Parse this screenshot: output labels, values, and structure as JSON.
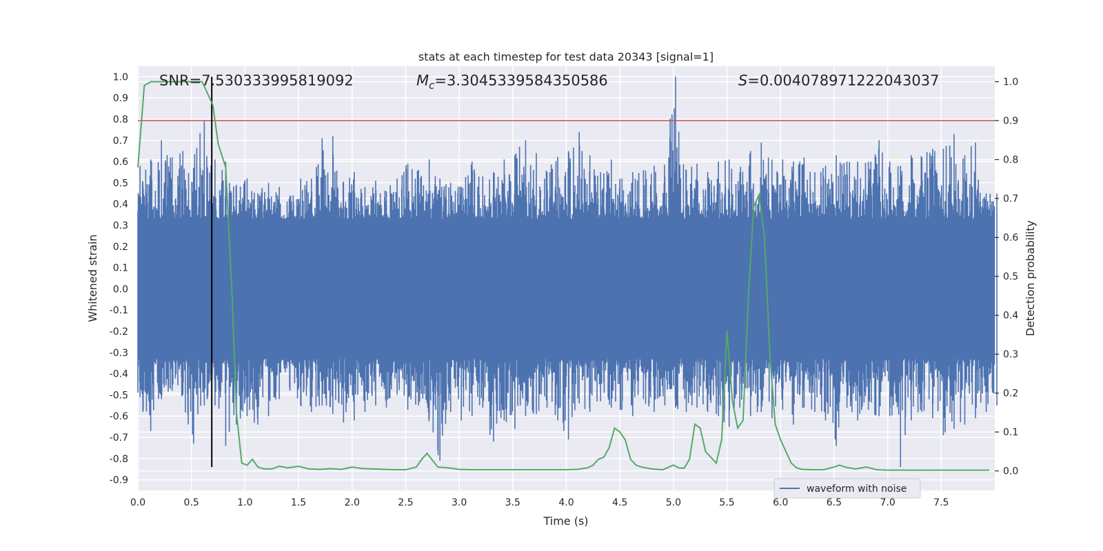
{
  "chart_data": {
    "type": "line",
    "title": "stats at each timestep for test data 20343 [signal=1]",
    "xlabel": "Time (s)",
    "ylabel": "Whitened strain",
    "y2label": "Detection probability",
    "xlim": [
      0.0,
      8.0
    ],
    "ylim": [
      -0.95,
      1.05
    ],
    "y2lim": [
      -0.05,
      1.04
    ],
    "x_ticks": [
      "0.0",
      "0.5",
      "1.0",
      "1.5",
      "2.0",
      "2.5",
      "3.0",
      "3.5",
      "4.0",
      "4.5",
      "5.0",
      "5.5",
      "6.0",
      "6.5",
      "7.0",
      "7.5"
    ],
    "y_ticks": [
      "1.0",
      "0.9",
      "0.8",
      "0.7",
      "0.6",
      "0.5",
      "0.4",
      "0.3",
      "0.2",
      "0.1",
      "0.0",
      "-0.1",
      "-0.2",
      "-0.3",
      "-0.4",
      "-0.5",
      "-0.6",
      "-0.7",
      "-0.8",
      "-0.9"
    ],
    "y2_ticks": [
      "1.0",
      "0.9",
      "0.8",
      "0.7",
      "0.6",
      "0.5",
      "0.4",
      "0.3",
      "0.2",
      "0.1",
      "0.0"
    ],
    "grid": true,
    "legend": {
      "placement": "lower-right",
      "entries": [
        "waveform with noise"
      ]
    },
    "annotations": {
      "snr_label": "SNR=7.530333995819092",
      "mc_label": "=3.3045339584350586",
      "s_label": "=0.004078971222043037",
      "mc_symbol": "M",
      "mc_subscript": "c",
      "s_symbol": "S"
    },
    "colors": {
      "waveform": "#4c72b0",
      "probability": "#55a868",
      "threshold": "#c44e52",
      "marker": "#000000",
      "background": "#eaeaf2"
    },
    "series": [
      {
        "name": "waveform with noise",
        "axis": "left",
        "envelope_x": [
          0.0,
          0.1,
          0.2,
          0.3,
          0.4,
          0.5,
          0.6,
          0.7,
          0.8,
          0.9,
          1.0,
          1.1,
          1.2,
          1.3,
          1.4,
          1.5,
          1.6,
          1.7,
          1.8,
          1.9,
          2.0,
          2.1,
          2.2,
          2.3,
          2.4,
          2.5,
          2.6,
          2.7,
          2.8,
          2.9,
          3.0,
          3.1,
          3.2,
          3.3,
          3.4,
          3.5,
          3.6,
          3.7,
          3.8,
          3.9,
          4.0,
          4.1,
          4.2,
          4.3,
          4.4,
          4.5,
          4.6,
          4.7,
          4.8,
          4.9,
          5.0,
          5.1,
          5.2,
          5.3,
          5.4,
          5.5,
          5.6,
          5.7,
          5.8,
          5.9,
          6.0,
          6.1,
          6.2,
          6.3,
          6.4,
          6.5,
          6.6,
          6.7,
          6.8,
          6.9,
          7.0,
          7.1,
          7.2,
          7.3,
          7.4,
          7.5,
          7.6,
          7.7,
          7.8,
          7.9,
          8.0
        ],
        "envelope_max": [
          0.58,
          0.61,
          0.7,
          0.62,
          0.65,
          0.57,
          0.79,
          0.61,
          0.6,
          0.49,
          0.52,
          0.45,
          0.5,
          0.48,
          0.44,
          0.52,
          0.52,
          0.71,
          0.72,
          0.5,
          0.55,
          0.48,
          0.51,
          0.46,
          0.52,
          0.59,
          0.56,
          0.61,
          0.52,
          0.5,
          0.48,
          0.6,
          0.53,
          0.55,
          0.61,
          0.63,
          0.7,
          0.64,
          0.55,
          0.62,
          0.65,
          0.74,
          0.63,
          0.55,
          0.61,
          0.52,
          0.55,
          0.56,
          0.58,
          0.53,
          1.0,
          0.56,
          0.59,
          0.55,
          0.6,
          0.61,
          0.55,
          0.65,
          0.69,
          0.61,
          0.61,
          0.6,
          0.62,
          0.55,
          0.58,
          0.63,
          0.6,
          0.6,
          0.6,
          0.7,
          0.6,
          0.58,
          0.63,
          0.62,
          0.66,
          0.66,
          0.73,
          0.63,
          0.69,
          0.45,
          0.45
        ],
        "envelope_min": [
          -0.51,
          -0.67,
          -0.52,
          -0.48,
          -0.5,
          -0.73,
          -0.55,
          -0.55,
          -0.74,
          -0.64,
          -0.6,
          -0.64,
          -0.6,
          -0.52,
          -0.48,
          -0.55,
          -0.58,
          -0.55,
          -0.59,
          -0.63,
          -0.62,
          -0.58,
          -0.55,
          -0.56,
          -0.5,
          -0.57,
          -0.55,
          -0.61,
          -0.81,
          -0.58,
          -0.62,
          -0.6,
          -0.56,
          -0.72,
          -0.62,
          -0.66,
          -0.6,
          -0.59,
          -0.56,
          -0.62,
          -0.71,
          -0.54,
          -0.58,
          -0.53,
          -0.56,
          -0.57,
          -0.6,
          -0.52,
          -0.58,
          -0.55,
          -0.56,
          -0.58,
          -0.56,
          -0.58,
          -0.6,
          -0.65,
          -0.56,
          -0.6,
          -0.58,
          -0.61,
          -0.57,
          -0.64,
          -0.56,
          -0.58,
          -0.62,
          -0.74,
          -0.56,
          -0.62,
          -0.57,
          -0.6,
          -0.6,
          -0.84,
          -0.62,
          -0.58,
          -0.61,
          -0.69,
          -0.66,
          -0.64,
          -0.61,
          -0.58,
          -0.55
        ],
        "typical_amplitude": 0.33
      },
      {
        "name": "",
        "axis": "right",
        "x": [
          0.0,
          0.06,
          0.12,
          0.2,
          0.3,
          0.4,
          0.5,
          0.6,
          0.7,
          0.75,
          0.82,
          0.88,
          0.92,
          0.97,
          1.02,
          1.07,
          1.12,
          1.18,
          1.25,
          1.32,
          1.4,
          1.5,
          1.6,
          1.7,
          1.8,
          1.9,
          2.0,
          2.1,
          2.2,
          2.3,
          2.4,
          2.5,
          2.6,
          2.65,
          2.7,
          2.8,
          2.9,
          3.0,
          3.1,
          3.2,
          3.4,
          3.6,
          3.8,
          4.0,
          4.1,
          4.2,
          4.25,
          4.3,
          4.35,
          4.4,
          4.45,
          4.5,
          4.55,
          4.6,
          4.65,
          4.7,
          4.8,
          4.9,
          5.0,
          5.05,
          5.1,
          5.15,
          5.2,
          5.25,
          5.3,
          5.4,
          5.45,
          5.5,
          5.55,
          5.6,
          5.65,
          5.7,
          5.75,
          5.8,
          5.85,
          5.9,
          5.95,
          6.0,
          6.05,
          6.1,
          6.15,
          6.2,
          6.3,
          6.4,
          6.5,
          6.55,
          6.6,
          6.7,
          6.8,
          6.9,
          7.0,
          7.2,
          7.4,
          7.6,
          7.8,
          7.95
        ],
        "y": [
          0.78,
          0.99,
          1.0,
          1.0,
          1.0,
          1.0,
          1.0,
          1.0,
          0.94,
          0.84,
          0.78,
          0.45,
          0.15,
          0.02,
          0.015,
          0.03,
          0.01,
          0.005,
          0.005,
          0.012,
          0.008,
          0.012,
          0.005,
          0.004,
          0.006,
          0.004,
          0.01,
          0.006,
          0.005,
          0.004,
          0.003,
          0.003,
          0.01,
          0.03,
          0.045,
          0.01,
          0.008,
          0.004,
          0.003,
          0.003,
          0.003,
          0.003,
          0.003,
          0.003,
          0.004,
          0.008,
          0.015,
          0.03,
          0.035,
          0.06,
          0.11,
          0.1,
          0.08,
          0.03,
          0.015,
          0.01,
          0.005,
          0.003,
          0.015,
          0.008,
          0.007,
          0.03,
          0.12,
          0.11,
          0.05,
          0.02,
          0.08,
          0.36,
          0.18,
          0.11,
          0.13,
          0.45,
          0.68,
          0.71,
          0.6,
          0.3,
          0.12,
          0.08,
          0.05,
          0.02,
          0.008,
          0.004,
          0.003,
          0.003,
          0.01,
          0.015,
          0.01,
          0.005,
          0.01,
          0.003,
          0.002,
          0.002,
          0.002,
          0.002,
          0.002,
          0.002
        ]
      },
      {
        "name": "",
        "axis": "right",
        "type": "hline",
        "y": 0.9
      },
      {
        "name": "",
        "axis": "left",
        "type": "vline",
        "x": 0.69,
        "y_range": [
          -0.84,
          1.0
        ]
      }
    ]
  }
}
